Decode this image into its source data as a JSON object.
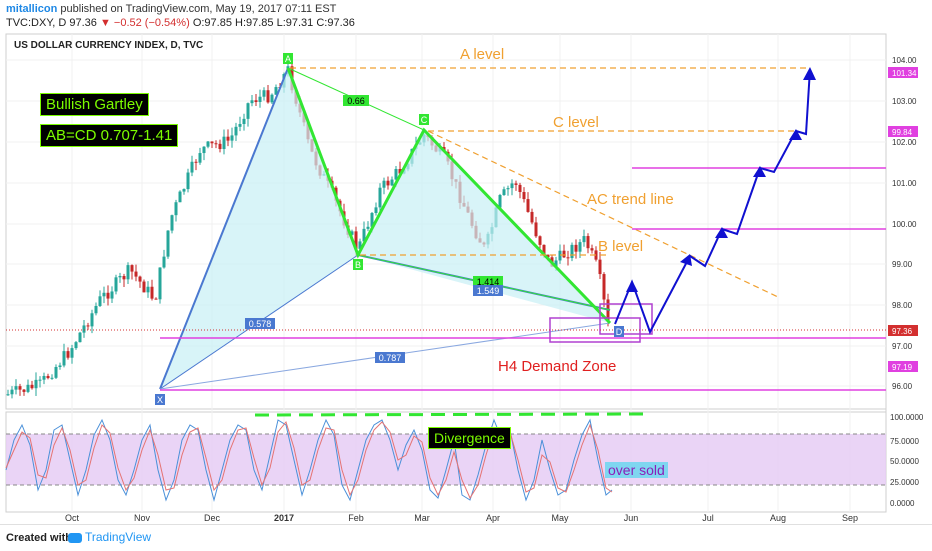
{
  "header": {
    "username": "mitallicon",
    "published": "published on TradingView.com, May 19, 2017 07:11 EST",
    "symbol": "TVC:DXY, D",
    "last": "97.36",
    "change": "▼ −0.52 (−0.54%)",
    "ohlc": "O:97.85 H:97.85 L:97.31 C:97.36"
  },
  "chart_title": "US DOLLAR CURRENCY INDEX, D, TVC",
  "annotations": {
    "pattern_name": "Bullish Gartley",
    "abcd": "AB=CD 0.707-1.41",
    "a_level": "A level",
    "c_level": "C level",
    "ac_trend": "AC trend line",
    "b_level": "B level",
    "demand_zone": "H4 Demand Zone",
    "divergence": "Divergence",
    "oversold": "over sold"
  },
  "pattern_points": {
    "a": "A",
    "b": "B",
    "c": "C",
    "d": "D",
    "x": "X"
  },
  "ratios": {
    "r066": "0.66",
    "r0578": "0.578",
    "r0787": "0.787",
    "r1414": "1.414",
    "r1549": "1.549"
  },
  "price_axis": {
    "ticks": [
      "104.00",
      "103.00",
      "102.00",
      "101.00",
      "100.00",
      "99.00",
      "98.00",
      "97.00",
      "96.00"
    ],
    "tags": {
      "t1": "101.34",
      "t2": "99.84",
      "t3": "97.36",
      "t4": "97.19"
    }
  },
  "osc_axis": {
    "ticks": [
      "100.0000",
      "75.0000",
      "50.0000",
      "25.0000",
      "0.0000"
    ]
  },
  "time_axis": [
    "Oct",
    "Nov",
    "Dec",
    "2017",
    "Feb",
    "Mar",
    "Apr",
    "May",
    "Jun",
    "Jul",
    "Aug",
    "Sep"
  ],
  "footer": {
    "created": "Created with",
    "brand": "TradingView"
  },
  "colors": {
    "up": "#26a69a",
    "down": "#c62828",
    "pattern_green": "#32e632",
    "leg_blue": "#4a78d0",
    "orange": "#f0a030",
    "magenta": "#e040e0",
    "arrow_blue": "#1010d0"
  }
}
